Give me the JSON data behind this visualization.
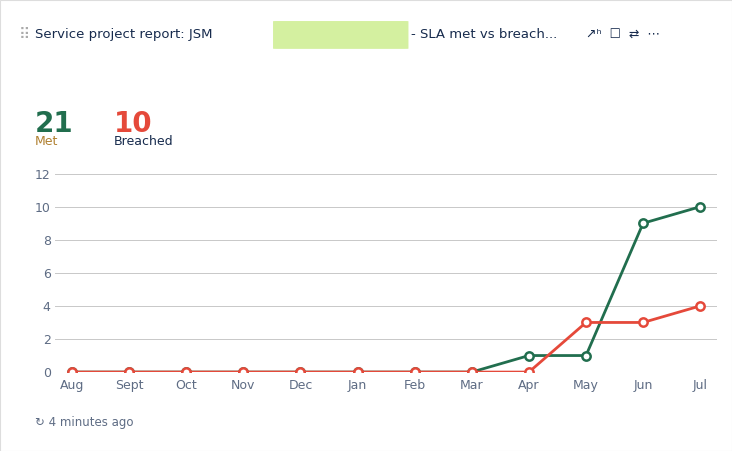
{
  "title_text": "Service project report: JSM",
  "subtitle_text": "- SLA met vs breach...",
  "highlight_box_color": "#d4f0a0",
  "met_value": "21",
  "breached_value": "10",
  "met_label": "Met",
  "breached_label": "Breached",
  "met_color": "#216e4e",
  "breached_color": "#e5493a",
  "met_label_color": "#b08030",
  "breached_label_color": "#172b4d",
  "months": [
    "Aug",
    "Sept",
    "Oct",
    "Nov",
    "Dec",
    "Jan",
    "Feb",
    "Mar",
    "Apr",
    "May",
    "Jun",
    "Jul"
  ],
  "met_data": [
    0,
    0,
    0,
    0,
    0,
    0,
    0,
    0,
    1,
    1,
    9,
    10
  ],
  "breached_data": [
    0,
    0,
    0,
    0,
    0,
    0,
    0,
    0,
    0,
    3,
    3,
    4
  ],
  "ylim": [
    0,
    12
  ],
  "yticks": [
    0,
    2,
    4,
    6,
    8,
    10,
    12
  ],
  "grid_color": "#c8c8c8",
  "background_color": "#ffffff",
  "border_top_color": "#1868db",
  "footer_text": "↻ 4 minutes ago",
  "footer_color": "#5e6c84",
  "title_color": "#172b4d",
  "axis_tick_color": "#5e6c84",
  "axis_label_fontsize": 9,
  "marker_size": 6,
  "line_width": 2.0
}
